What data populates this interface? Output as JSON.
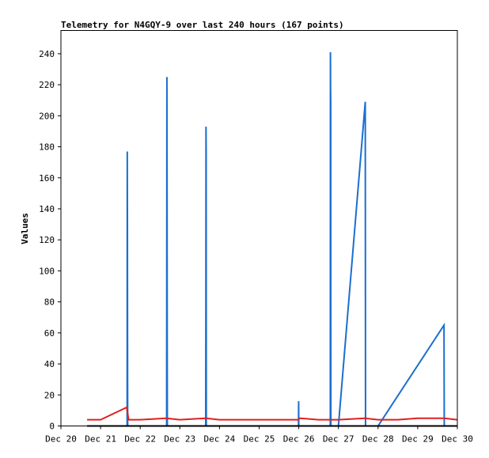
{
  "chart_data": {
    "type": "line",
    "title": "Telemetry for N4GQY-9 over last 240 hours (167 points)",
    "xlabel": "",
    "ylabel": "Values",
    "ylim": [
      0,
      255
    ],
    "xlim": [
      "2025-12-20T00:00",
      "2025-12-30T00:00"
    ],
    "x_tick_labels": [
      "Dec 20",
      "Dec 21",
      "Dec 22",
      "Dec 23",
      "Dec 24",
      "Dec 25",
      "Dec 26",
      "Dec 27",
      "Dec 28",
      "Dec 29",
      "Dec 30"
    ],
    "y_ticks": [
      0,
      20,
      40,
      60,
      80,
      100,
      120,
      140,
      160,
      180,
      200,
      220,
      240
    ],
    "grid": false,
    "legend": "none",
    "series": [
      {
        "color": "#1a6fd0",
        "points": [
          [
            "2025-12-21T16:05",
            0
          ],
          [
            "2025-12-21T16:10",
            177
          ],
          [
            "2025-12-21T16:15",
            134
          ],
          [
            "2025-12-21T16:20",
            45
          ],
          [
            "2025-12-21T16:25",
            0
          ],
          [
            "2025-12-22T16:00",
            0
          ],
          [
            "2025-12-22T16:05",
            112
          ],
          [
            "2025-12-22T16:10",
            225
          ],
          [
            "2025-12-22T16:15",
            169
          ],
          [
            "2025-12-22T16:20",
            57
          ],
          [
            "2025-12-22T16:25",
            0
          ],
          [
            "2025-12-23T15:40",
            0
          ],
          [
            "2025-12-23T15:45",
            81
          ],
          [
            "2025-12-23T15:50",
            193
          ],
          [
            "2025-12-23T15:55",
            177
          ],
          [
            "2025-12-23T16:00",
            0
          ],
          [
            "2025-12-25T23:50",
            0
          ],
          [
            "2025-12-25T23:55",
            16
          ],
          [
            "2025-12-26T00:00",
            0
          ],
          [
            "2025-12-26T19:05",
            0
          ],
          [
            "2025-12-26T19:10",
            241
          ],
          [
            "2025-12-26T19:15",
            217
          ],
          [
            "2025-12-26T19:20",
            209
          ],
          [
            "2025-12-26T19:25",
            0
          ],
          [
            "2025-12-27T00:00",
            0
          ],
          [
            "2025-12-27T16:15",
            209
          ],
          [
            "2025-12-27T16:20",
            105
          ],
          [
            "2025-12-27T16:25",
            0
          ],
          [
            "2025-12-28T00:00",
            0
          ],
          [
            "2025-12-29T15:55",
            65
          ],
          [
            "2025-12-29T16:00",
            32
          ],
          [
            "2025-12-29T16:05",
            0
          ]
        ]
      },
      {
        "color": "#e02020",
        "points": [
          [
            "2025-12-20T15:50",
            4
          ],
          [
            "2025-12-21T00:00",
            4
          ],
          [
            "2025-12-21T15:50",
            12
          ],
          [
            "2025-12-21T17:00",
            4
          ],
          [
            "2025-12-22T00:00",
            4
          ],
          [
            "2025-12-22T15:50",
            5
          ],
          [
            "2025-12-23T00:00",
            4
          ],
          [
            "2025-12-23T15:50",
            5
          ],
          [
            "2025-12-24T00:00",
            4
          ],
          [
            "2025-12-25T23:50",
            4
          ],
          [
            "2025-12-26T00:30",
            5
          ],
          [
            "2025-12-26T12:00",
            4
          ],
          [
            "2025-12-27T00:00",
            4
          ],
          [
            "2025-12-27T16:00",
            5
          ],
          [
            "2025-12-28T00:00",
            4
          ],
          [
            "2025-12-28T12:00",
            4
          ],
          [
            "2025-12-29T00:00",
            5
          ],
          [
            "2025-12-29T16:00",
            5
          ],
          [
            "2025-12-29T23:50",
            4
          ]
        ]
      },
      {
        "color": "#000000",
        "points": [
          [
            "2025-12-20T15:50",
            0
          ],
          [
            "2025-12-29T23:50",
            0
          ]
        ]
      }
    ]
  }
}
